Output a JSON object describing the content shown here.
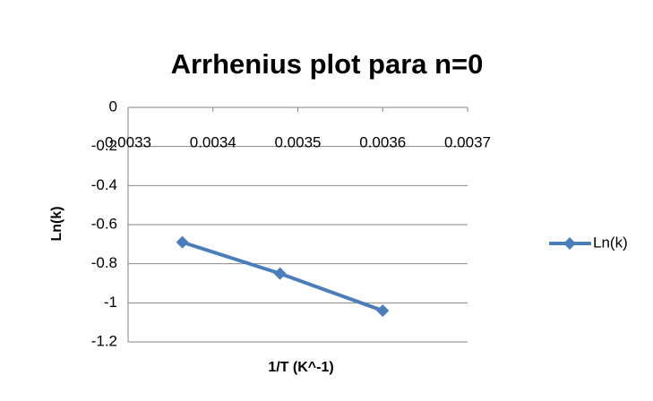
{
  "chart_data": {
    "type": "scatter-line",
    "title": "Arrhenius plot para n=0",
    "x_label": "1/T (K^-1)",
    "y_label": "Ln(k)",
    "series": [
      {
        "name": "Ln(k)",
        "color": "#4a7ebb",
        "x": [
          0.003364,
          0.003479,
          0.0036
        ],
        "values": [
          -0.69,
          -0.85,
          -1.04
        ]
      }
    ],
    "xlim": [
      0.0033,
      0.0037
    ],
    "xticks": [
      0.0033,
      0.0034,
      0.0035,
      0.0036,
      0.0037
    ],
    "ylim": [
      -1.2,
      0
    ],
    "yticks": [
      0,
      -0.2,
      -0.4,
      -0.6,
      -0.8,
      -1,
      -1.2
    ],
    "grid": true,
    "legend": "right"
  }
}
